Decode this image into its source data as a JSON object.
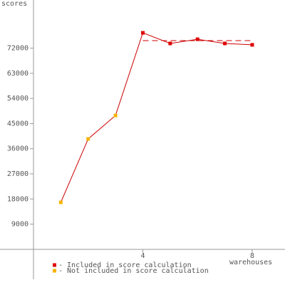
{
  "chart_data": {
    "type": "line",
    "y_label": "scores",
    "x_label": "warehouses",
    "series": [
      {
        "name": "- Not included in score calculation",
        "color": "#f5b400",
        "x": [
          1,
          2,
          3
        ],
        "values": [
          16800,
          39500,
          47900
        ]
      },
      {
        "name": "- Included in score calculation",
        "color": "#e00000",
        "x": [
          4,
          5,
          6,
          7,
          8
        ],
        "values": [
          77500,
          73700,
          75200,
          73700,
          73200
        ]
      }
    ],
    "line_color": "#cc0000",
    "reference": {
      "value": 74700,
      "x": [
        4,
        8
      ],
      "color": "#cc0000"
    },
    "xlim": [
      0,
      9.2
    ],
    "xticks": [
      4,
      8
    ],
    "ylim": [
      -10000,
      89000
    ],
    "yticks": [
      9000,
      18000,
      27000,
      36000,
      45000,
      54000,
      63000,
      72000
    ]
  }
}
